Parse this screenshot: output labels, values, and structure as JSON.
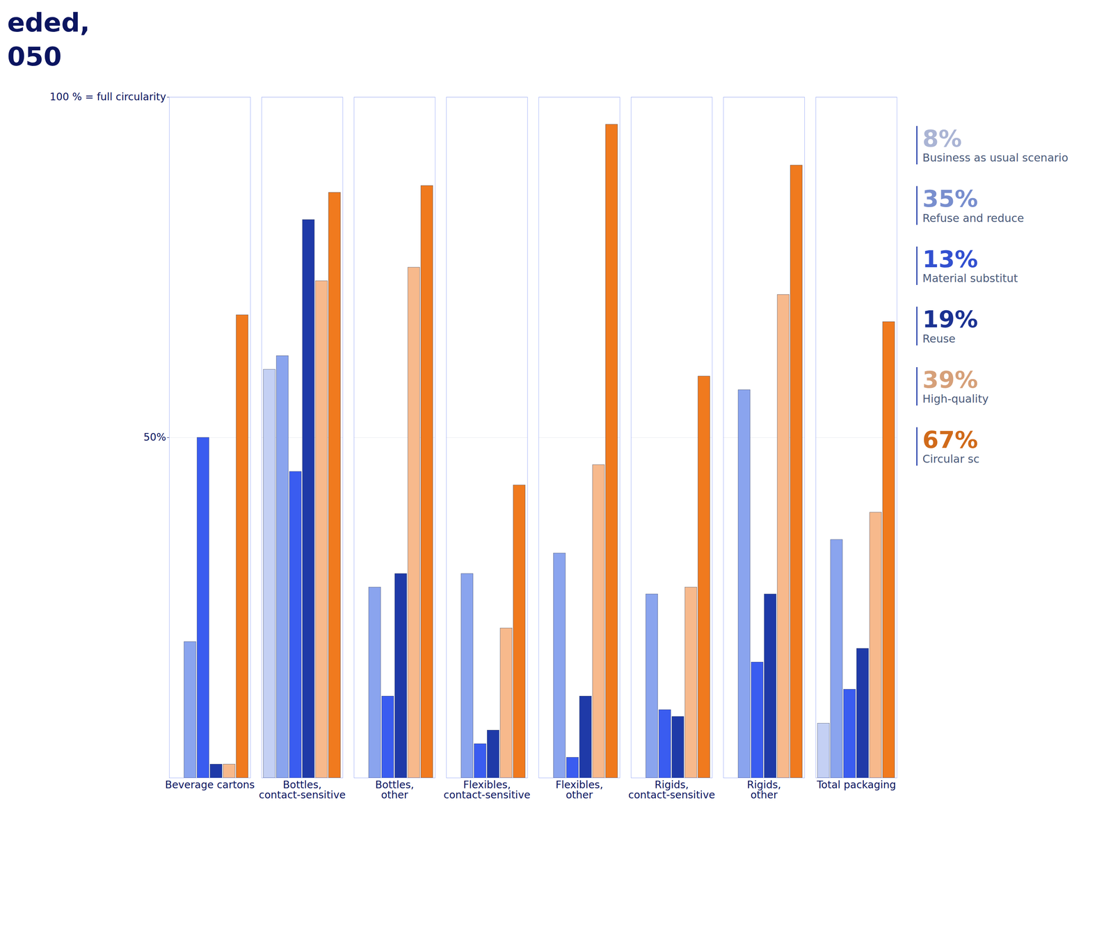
{
  "chart_data": {
    "type": "bar",
    "title": "eded,",
    "subtitle": "050",
    "categories": [
      "Beverage cartons",
      "Bottles, contact-sensitive",
      "Bottles, other",
      "Flexibles, contact-sensitive",
      "Flexibles, other",
      "Rigids, contact-sensitive",
      "Rigids, other",
      "Total packaging"
    ],
    "series": [
      {
        "name": "Business as usual scenario",
        "color": "#c4d0f4",
        "values": [
          0,
          60,
          0,
          0,
          0,
          0,
          0,
          8
        ],
        "value_labels": [
          null,
          null,
          null,
          null,
          null,
          null,
          null,
          "8%"
        ]
      },
      {
        "name": "Refuse and reduce",
        "color": "#8aa4ee",
        "values": [
          20,
          62,
          28,
          30,
          33,
          27,
          57,
          35
        ],
        "value_labels": [
          null,
          null,
          null,
          null,
          null,
          null,
          null,
          "35%"
        ]
      },
      {
        "name": "Material substitut",
        "color": "#3a5cf0",
        "values": [
          50,
          45,
          12,
          5,
          3,
          10,
          17,
          13
        ],
        "value_labels": [
          null,
          null,
          null,
          null,
          null,
          null,
          null,
          "13%"
        ]
      },
      {
        "name": "Reuse",
        "color": "#1f3aa8",
        "values": [
          2,
          82,
          30,
          7,
          12,
          9,
          27,
          19
        ],
        "value_labels": [
          null,
          null,
          null,
          null,
          null,
          null,
          null,
          "19%"
        ]
      },
      {
        "name": "High-quality",
        "color": "#f7b98c",
        "values": [
          2,
          73,
          75,
          22,
          46,
          28,
          71,
          39
        ],
        "value_labels": [
          null,
          null,
          null,
          null,
          null,
          null,
          null,
          "39%"
        ]
      },
      {
        "name": "Circular sc",
        "color": "#f07a1e",
        "values": [
          68,
          86,
          87,
          43,
          96,
          59,
          90,
          67
        ],
        "value_labels": [
          null,
          null,
          null,
          null,
          null,
          null,
          null,
          "67%"
        ]
      }
    ],
    "ylim": [
      0,
      100
    ],
    "yticks": [
      {
        "value": 50,
        "label": "50%"
      },
      {
        "value": 100,
        "label": "100 % = full circularity"
      }
    ],
    "grid": true,
    "legend": "right"
  }
}
